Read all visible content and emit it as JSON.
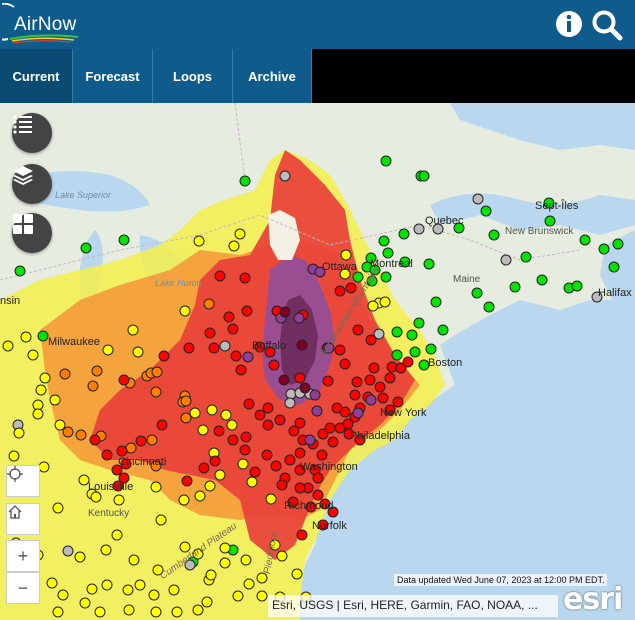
{
  "header": {
    "logo_text": "AirNow",
    "info_icon": "info-icon",
    "search_icon": "search-icon"
  },
  "nav": {
    "tabs": [
      {
        "label": "Current",
        "active": true
      },
      {
        "label": "Forecast",
        "active": false
      },
      {
        "label": "Loops",
        "active": false
      },
      {
        "label": "Archive",
        "active": false
      }
    ]
  },
  "map": {
    "controls": {
      "layers_list_icon": "list-icon",
      "basemap_icon": "layers-icon",
      "widgets_icon": "grid-icon",
      "locate_icon": "crosshair-icon",
      "home_icon": "home-icon",
      "zoom_in": "+",
      "zoom_out": "−"
    },
    "labels": {
      "sept_iles": "Sept-Îles",
      "lake_superior": "Lake Superior",
      "ottawa": "Ottawa",
      "montreal": "Montreal",
      "quebec": "Quebec",
      "new_brunswick": "New Brunswick",
      "maine": "Maine",
      "halifax": "Halifax",
      "lake_huron": "Lake Huron",
      "milwaukee": "Milwaukee",
      "buffalo": "Buffalo",
      "boston": "Boston",
      "appalachian": "Appalachian Mountains",
      "new_york": "New York",
      "philadelphia": "Philadelphia",
      "washington": "Washington",
      "cincinnati": "Cincinnati",
      "louisville": "Louisville",
      "kentucky": "Kentucky",
      "richmond": "Richmond",
      "norfolk": "Norfolk",
      "cumberland_plateau": "Cumberland Plateau",
      "piedmont": "Piedmont",
      "minsin": "nsin"
    },
    "updated_text": "Data updated Wed June 07, 2023 at 12:00 PM EDT.",
    "attribution": "Esri, USGS | Esri, HERE, Garmin, FAO, NOAA, ...",
    "esri_logo": "esri"
  },
  "colors": {
    "header_bg": "#0f5c8c",
    "aqi_good": "#00e400",
    "aqi_moderate": "#ffff00",
    "aqi_usg": "#ff7e00",
    "aqi_unhealthy": "#ff0000",
    "aqi_very_unhealthy": "#8f3f97",
    "aqi_hazardous": "#7e0023",
    "no_data": "#bbbbbb"
  }
}
